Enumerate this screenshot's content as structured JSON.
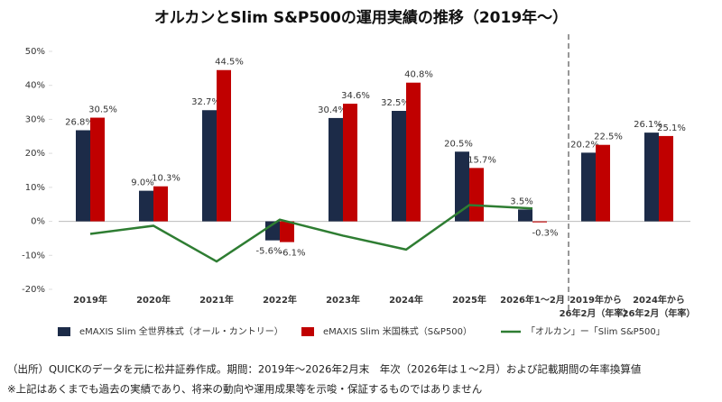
{
  "chart_data": {
    "type": "bar",
    "title": "オルカンとSlim S&P500の運用実績の推移（2019年～）",
    "categories": [
      "2019年",
      "2020年",
      "2021年",
      "2022年",
      "2023年",
      "2024年",
      "2025年",
      "2026年1～2月",
      "2019年から\n26年2月（年率）",
      "2024年から\n26年2月（年率）"
    ],
    "series": [
      {
        "name": "eMAXIS Slim 全世界株式（オール・カントリー）",
        "type": "bar",
        "color": "#1c2b48",
        "values": [
          26.8,
          9.0,
          32.7,
          -5.6,
          30.4,
          32.5,
          20.5,
          3.5,
          20.2,
          26.1
        ],
        "value_labels": [
          "26.8%",
          "9.0%",
          "32.7%",
          "-5.6%",
          "30.4%",
          "32.5%",
          "20.5%",
          "3.5%",
          "20.2%",
          "26.1%"
        ]
      },
      {
        "name": "eMAXIS Slim 米国株式（S&P500）",
        "type": "bar",
        "color": "#c00000",
        "values": [
          30.5,
          10.3,
          44.5,
          -6.1,
          34.6,
          40.8,
          15.7,
          -0.3,
          22.5,
          25.1
        ],
        "value_labels": [
          "30.5%",
          "10.3%",
          "44.5%",
          "-6.1%",
          "34.6%",
          "40.8%",
          "15.7%",
          "-0.3%",
          "22.5%",
          "25.1%"
        ]
      },
      {
        "name": "「オルカン」ー「Slim S&P500」",
        "type": "line",
        "color": "#2e7d32",
        "values": [
          -3.7,
          -1.3,
          -11.8,
          0.5,
          -4.2,
          -8.3,
          4.8,
          3.8,
          null,
          null
        ]
      }
    ],
    "ylim": [
      -20,
      50
    ],
    "yticks": [
      {
        "value": -20,
        "label": "-20%"
      },
      {
        "value": -10,
        "label": "-10%"
      },
      {
        "value": 0,
        "label": "0%"
      },
      {
        "value": 10,
        "label": "10%"
      },
      {
        "value": 20,
        "label": "20%"
      },
      {
        "value": 30,
        "label": "30%"
      },
      {
        "value": 40,
        "label": "40%"
      },
      {
        "value": 50,
        "label": "50%"
      }
    ],
    "grid": false,
    "notes": [
      "（出所）QUICKのデータを元に松井証券作成。期間：2019年～2026年2月末　年次（2026年は１～2月）および記載期間の年率換算値",
      "※上記はあくまでも過去の実績であり、将来の動向や運用成果等を示唆・保証するものではありません"
    ]
  }
}
